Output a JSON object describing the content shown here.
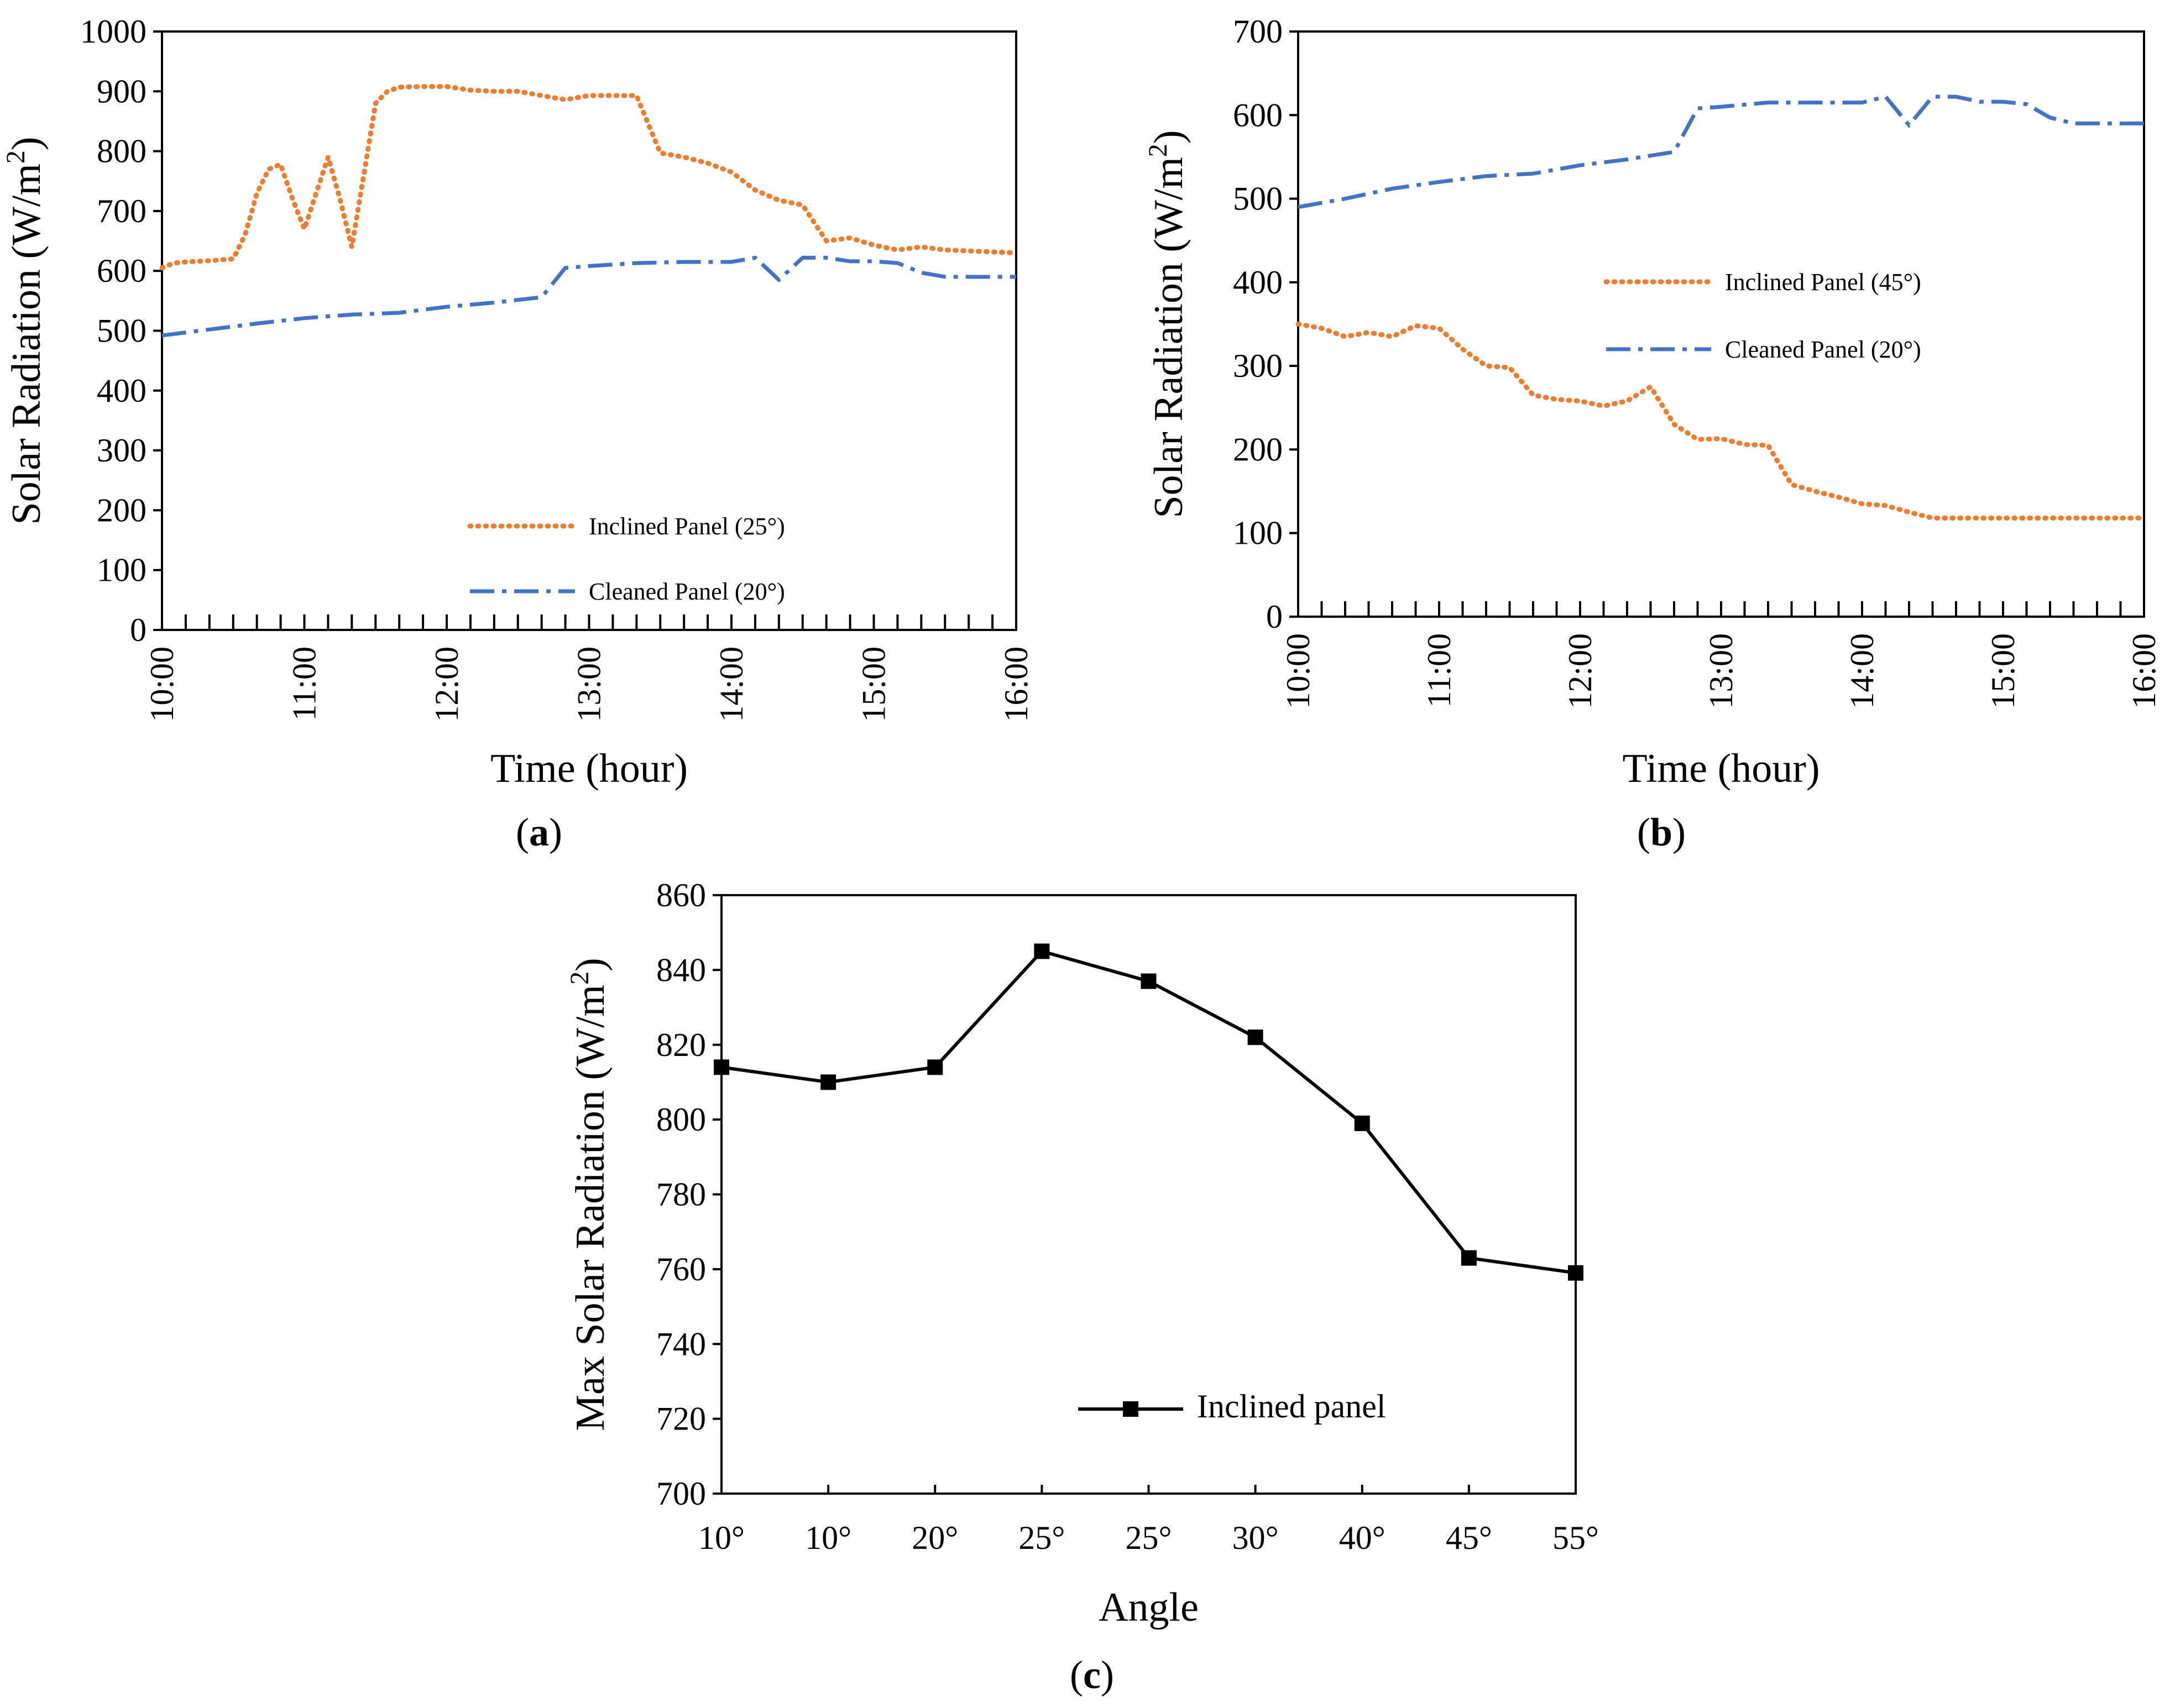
{
  "chart_data": [
    {
      "id": "a",
      "type": "line",
      "panel_label": "a",
      "xlabel": "Time (hour)",
      "ylabel": "Solar Radiation (W/m",
      "ylabel_sup": "2",
      "ylabel_end": ")",
      "xlim": [
        10,
        16
      ],
      "ylim": [
        0,
        1000
      ],
      "yticks": [
        0,
        100,
        200,
        300,
        400,
        500,
        600,
        700,
        800,
        900,
        1000
      ],
      "xticks": [
        {
          "v": 10,
          "t": "10:00"
        },
        {
          "v": 11,
          "t": "11:00"
        },
        {
          "v": 12,
          "t": "12:00"
        },
        {
          "v": 13,
          "t": "13:00"
        },
        {
          "v": 14,
          "t": "14:00"
        },
        {
          "v": 15,
          "t": "15:00"
        },
        {
          "v": 16,
          "t": "16:00"
        }
      ],
      "minor_step": 0.1667,
      "grid": false,
      "legend_position": "bottom-right",
      "series": [
        {
          "name": "Inclined Panel (25°)",
          "style": "dotted",
          "color": "#ED7D31",
          "x": [
            10.0,
            10.083,
            10.167,
            10.333,
            10.5,
            10.583,
            10.667,
            10.75,
            10.833,
            10.917,
            11.0,
            11.083,
            11.167,
            11.25,
            11.333,
            11.417,
            11.5,
            11.583,
            11.667,
            11.833,
            12.0,
            12.167,
            12.333,
            12.5,
            12.667,
            12.833,
            13.0,
            13.167,
            13.333,
            13.5,
            13.667,
            13.833,
            14.0,
            14.167,
            14.333,
            14.5,
            14.667,
            14.833,
            15.0,
            15.167,
            15.333,
            15.5,
            16.0
          ],
          "y": [
            605,
            613,
            615,
            617,
            620,
            660,
            730,
            770,
            778,
            720,
            670,
            730,
            790,
            720,
            640,
            760,
            880,
            900,
            907,
            908,
            908,
            902,
            900,
            900,
            893,
            886,
            893,
            893,
            893,
            797,
            790,
            780,
            765,
            735,
            718,
            710,
            650,
            655,
            643,
            635,
            640,
            635,
            630
          ]
        },
        {
          "name": "Cleaned Panel (20°)",
          "style": "dashdot",
          "color": "#4472C4",
          "x": [
            10.0,
            10.333,
            10.667,
            11.0,
            11.333,
            11.667,
            12.0,
            12.333,
            12.667,
            12.833,
            13.0,
            13.333,
            13.667,
            14.0,
            14.167,
            14.333,
            14.5,
            14.667,
            14.833,
            15.0,
            15.167,
            15.333,
            15.5,
            16.0
          ],
          "y": [
            492,
            502,
            512,
            521,
            527,
            530,
            540,
            547,
            556,
            605,
            608,
            613,
            615,
            615,
            622,
            585,
            622,
            622,
            616,
            616,
            613,
            597,
            590,
            590
          ]
        }
      ]
    },
    {
      "id": "b",
      "type": "line",
      "panel_label": "b",
      "xlabel": "Time (hour)",
      "ylabel": "Solar Radiation (W/m",
      "ylabel_sup": "2",
      "ylabel_end": ")",
      "xlim": [
        10,
        16
      ],
      "ylim": [
        0,
        700
      ],
      "yticks": [
        0,
        100,
        200,
        300,
        400,
        500,
        600,
        700
      ],
      "xticks": [
        {
          "v": 10,
          "t": "10:00"
        },
        {
          "v": 11,
          "t": "11:00"
        },
        {
          "v": 12,
          "t": "12:00"
        },
        {
          "v": 13,
          "t": "13:00"
        },
        {
          "v": 14,
          "t": "14:00"
        },
        {
          "v": 15,
          "t": "15:00"
        },
        {
          "v": 16,
          "t": "16:00"
        }
      ],
      "minor_step": 0.1667,
      "grid": false,
      "legend_position": "middle-right",
      "series": [
        {
          "name": "Inclined Panel (45°)",
          "style": "dotted",
          "color": "#ED7D31",
          "x": [
            10.0,
            10.167,
            10.333,
            10.5,
            10.667,
            10.833,
            11.0,
            11.167,
            11.333,
            11.5,
            11.667,
            11.833,
            12.0,
            12.167,
            12.333,
            12.5,
            12.667,
            12.833,
            13.0,
            13.167,
            13.333,
            13.5,
            13.667,
            13.833,
            14.0,
            14.167,
            14.333,
            14.5,
            14.667,
            14.833,
            15.0,
            15.333,
            16.0
          ],
          "y": [
            350,
            345,
            335,
            340,
            335,
            348,
            345,
            320,
            300,
            298,
            265,
            260,
            258,
            252,
            258,
            275,
            230,
            212,
            213,
            206,
            205,
            158,
            150,
            143,
            135,
            133,
            125,
            118,
            118,
            118,
            118,
            118,
            118
          ]
        },
        {
          "name": "Cleaned Panel (20°)",
          "style": "dashdot",
          "color": "#4472C4",
          "x": [
            10.0,
            10.333,
            10.667,
            11.0,
            11.333,
            11.667,
            12.0,
            12.333,
            12.667,
            12.833,
            13.0,
            13.333,
            13.667,
            14.0,
            14.167,
            14.333,
            14.5,
            14.667,
            14.833,
            15.0,
            15.167,
            15.333,
            15.5,
            16.0
          ],
          "y": [
            490,
            500,
            512,
            520,
            527,
            530,
            540,
            547,
            556,
            608,
            610,
            615,
            615,
            615,
            622,
            588,
            622,
            622,
            616,
            616,
            613,
            597,
            590,
            590
          ]
        }
      ]
    },
    {
      "id": "c",
      "type": "line",
      "panel_label": "c",
      "xlabel": "Angle",
      "ylabel": "Max Solar Radiation (W/m",
      "ylabel_sup": "2",
      "ylabel_end": ")",
      "ylim": [
        700,
        860
      ],
      "yticks": [
        700,
        720,
        740,
        760,
        780,
        800,
        820,
        840,
        860
      ],
      "categories": [
        "10°",
        "10°",
        "20°",
        "25°",
        "25°",
        "30°",
        "40°",
        "45°",
        "55°"
      ],
      "grid": false,
      "legend_position": "bottom-right",
      "series": [
        {
          "name": "Inclined panel",
          "style": "solid-square",
          "color": "#000000",
          "values": [
            814,
            810,
            814,
            845,
            837,
            822,
            799,
            763,
            759
          ]
        }
      ]
    }
  ]
}
